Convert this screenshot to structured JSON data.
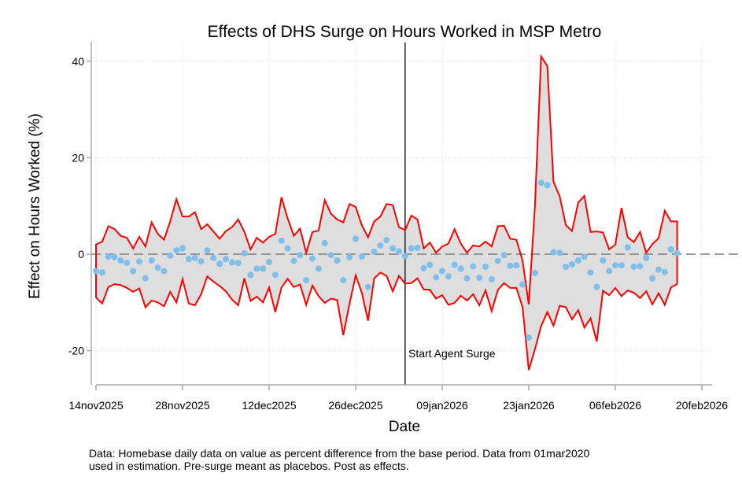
{
  "chart_data": {
    "type": "line",
    "title": "Effects of DHS Surge on Hours Worked in MSP Metro",
    "xlabel": "Date",
    "ylabel": "Effect on Hours Worked (%)",
    "x_start_date": "14nov2025",
    "x_tick_labels": [
      "14nov2025",
      "28nov2025",
      "12dec2025",
      "26dec2025",
      "09jan2026",
      "23jan2026",
      "06feb2026",
      "20feb2026"
    ],
    "x_tick_days": [
      0,
      14,
      28,
      42,
      56,
      70,
      84,
      98
    ],
    "xlim_days": [
      0,
      100
    ],
    "y_ticks": [
      -20,
      0,
      20,
      40
    ],
    "y_tick_labels": [
      "-20",
      "0",
      "20",
      "40"
    ],
    "ylim": [
      -27,
      44
    ],
    "grid": true,
    "reference_line": {
      "y": 0,
      "style": "dashed"
    },
    "event": {
      "day": 50,
      "label": "Start Agent Surge"
    },
    "series": [
      {
        "name": "Effect",
        "style": "scatter",
        "color": "#7fbfea",
        "values": [
          -3.5,
          -3.8,
          -0.5,
          -0.6,
          -1.3,
          -1.8,
          -3.5,
          -1.5,
          -5.0,
          -1.3,
          -2.8,
          -3.5,
          -0.3,
          0.8,
          1.2,
          -1.0,
          -0.8,
          -1.5,
          0.8,
          -0.8,
          -2.0,
          -1.0,
          -1.7,
          -1.8,
          0.2,
          -4.3,
          -3.0,
          -3.0,
          -1.6,
          -4.3,
          2.8,
          1.2,
          -1.4,
          -0.2,
          -5.4,
          -0.9,
          -3.0,
          2.3,
          -0.2,
          -1.3,
          -5.4,
          -0.6,
          3.2,
          -0.5,
          -6.8,
          0.5,
          1.8,
          2.9,
          1.2,
          0.6,
          -0.4,
          1.2,
          1.3,
          -2.9,
          -2.2,
          -4.8,
          -3.5,
          -4.6,
          -2.2,
          -3.0,
          -5.0,
          -2.5,
          -4.9,
          -2.6,
          -5.2,
          -1.4,
          -0.2,
          -2.4,
          -2.3,
          -6.3,
          -17.3,
          -3.9,
          14.8,
          14.3,
          0.4,
          0.3,
          -2.6,
          -2.1,
          -1.3,
          -0.5,
          -3.8,
          -6.8,
          -1.3,
          -3.5,
          -2.3,
          -2.3,
          1.4,
          -2.6,
          -2.5,
          -0.8,
          -5.0,
          -3.2,
          -3.7,
          1.0,
          0.2
        ]
      },
      {
        "name": "Upper bound",
        "style": "line",
        "color": "#ff0000",
        "values": [
          2.0,
          2.6,
          5.8,
          5.2,
          3.8,
          3.4,
          1.2,
          3.6,
          1.6,
          6.6,
          4.2,
          3.0,
          6.8,
          11.4,
          7.8,
          7.8,
          8.7,
          5.2,
          6.2,
          4.7,
          3.2,
          4.8,
          5.6,
          7.2,
          4.6,
          1.0,
          3.4,
          2.4,
          3.6,
          4.2,
          11.8,
          7.4,
          3.8,
          5.3,
          0.3,
          4.6,
          4.9,
          11.2,
          8.4,
          7.2,
          6.6,
          10.4,
          9.8,
          6.0,
          3.5,
          6.8,
          7.8,
          10.4,
          10.2,
          5.6,
          5.0,
          8.0,
          7.2,
          1.2,
          2.4,
          0.3,
          1.6,
          2.2,
          5.2,
          2.2,
          0.3,
          1.8,
          1.6,
          2.6,
          1.6,
          5.8,
          5.9,
          3.2,
          3.0,
          -1.4,
          -10.4,
          10.0,
          41.0,
          39.0,
          15.0,
          12.0,
          6.0,
          4.8,
          10.7,
          12.1,
          4.6,
          4.7,
          4.5,
          1.0,
          2.0,
          9.6,
          3.5,
          2.5,
          4.6,
          0.3,
          2.1,
          3.3,
          9.0,
          6.8,
          6.8
        ]
      },
      {
        "name": "Lower bound",
        "style": "line",
        "color": "#ff0000",
        "values": [
          -9.0,
          -10.2,
          -6.8,
          -6.2,
          -6.4,
          -7.0,
          -7.8,
          -7.1,
          -11.0,
          -9.6,
          -10.0,
          -10.8,
          -7.8,
          -10.0,
          -5.2,
          -10.2,
          -10.6,
          -8.3,
          -4.6,
          -5.7,
          -6.6,
          -7.7,
          -9.4,
          -10.6,
          -5.0,
          -9.7,
          -8.8,
          -10.0,
          -6.9,
          -12.0,
          -6.9,
          -5.1,
          -6.8,
          -6.3,
          -10.5,
          -6.5,
          -8.7,
          -10.1,
          -9.2,
          -9.5,
          -16.8,
          -10.3,
          -4.4,
          -8.0,
          -13.8,
          -5.0,
          -3.8,
          -4.5,
          -7.7,
          -4.5,
          -6.1,
          -6.0,
          -5.0,
          -7.3,
          -7.4,
          -9.2,
          -8.5,
          -10.5,
          -10.1,
          -8.6,
          -9.6,
          -8.3,
          -10.6,
          -7.5,
          -11.8,
          -7.4,
          -6.0,
          -7.0,
          -7.0,
          -11.0,
          -24.0,
          -19.7,
          -14.9,
          -12.0,
          -14.8,
          -10.7,
          -11.0,
          -13.5,
          -11.6,
          -15.2,
          -13.3,
          -18.1,
          -7.6,
          -8.5,
          -7.0,
          -8.7,
          -7.5,
          -8.0,
          -9.1,
          -7.7,
          -10.4,
          -8.1,
          -10.5,
          -6.9,
          -6.2
        ]
      }
    ]
  },
  "note": {
    "line1": "Data: Homebase daily data on value as percent difference from the base period. Data from 01mar2020",
    "line2": "used in estimation. Pre-surge meant as placebos. Post as effects."
  }
}
